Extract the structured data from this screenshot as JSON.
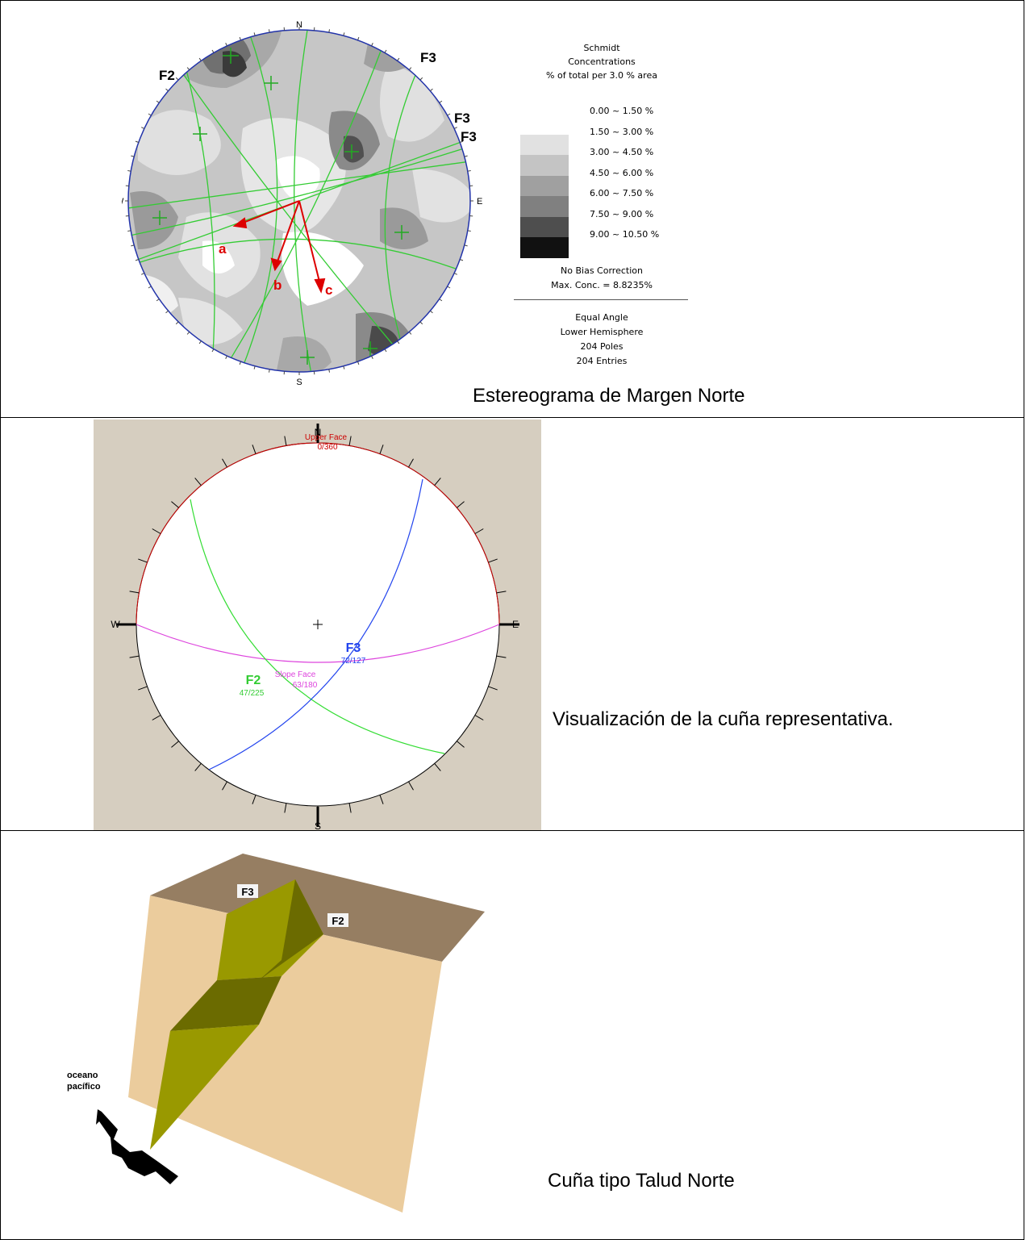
{
  "stereonet1": {
    "north": "N",
    "south": "S",
    "east": "E",
    "west": "W",
    "labels": {
      "f2": "F2",
      "f3_top": "F3",
      "f3_right1": "F3",
      "f3_right2": "F3"
    },
    "arrows": {
      "a": "a",
      "b": "b",
      "c": "c"
    },
    "legend": {
      "title": "Schmidt",
      "subtitle": "Concentrations",
      "area": "% of total per 3.0 % area",
      "ranges": [
        {
          "label": "0.00 ~  1.50 %",
          "color": "#ffffff"
        },
        {
          "label": "1.50 ~  3.00 %",
          "color": "#e1e1e1"
        },
        {
          "label": "3.00 ~  4.50 %",
          "color": "#c4c4c4"
        },
        {
          "label": "4.50 ~  6.00 %",
          "color": "#a0a0a0"
        },
        {
          "label": "6.00 ~  7.50 %",
          "color": "#808080"
        },
        {
          "label": "7.50 ~  9.00 %",
          "color": "#4e4e4e"
        },
        {
          "label": "9.00 ~ 10.50 %",
          "color": "#111111"
        }
      ],
      "bias": "No Bias Correction",
      "max": "Max. Conc. = 8.8235%",
      "projection": "Equal Angle",
      "hemisphere": "Lower Hemisphere",
      "poles": "204 Poles",
      "entries": "204 Entries"
    },
    "caption": "Estereograma de Margen Norte"
  },
  "stereonet2": {
    "north": "N",
    "south": "S",
    "east": "E",
    "west": "W",
    "upper_face": "Upper Face",
    "upper_face_val": "0/360",
    "f3": "F3",
    "f3_val": "72/127",
    "f2": "F2",
    "f2_val": "47/225",
    "slope_face": "Slope Face",
    "slope_face_val": "63/180",
    "caption": "Visualización de la cuña representativa."
  },
  "wedge": {
    "f3": "F3",
    "f2": "F2",
    "ocean1": "oceano",
    "ocean2": "pacífico",
    "caption": "Cuña tipo Talud Norte"
  }
}
